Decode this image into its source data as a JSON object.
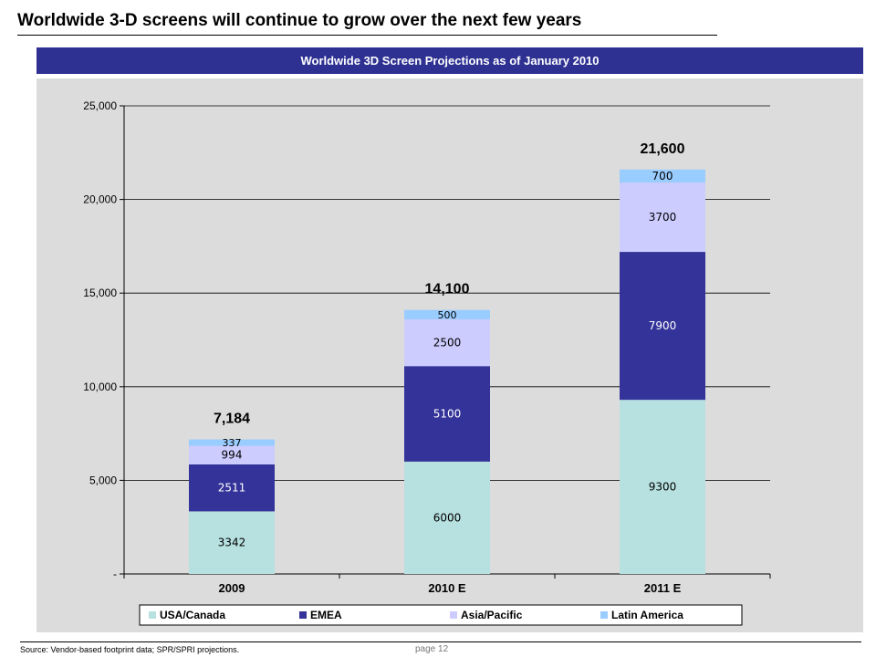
{
  "slide": {
    "title": "Worldwide 3-D screens will continue to grow over the next few years",
    "source": "Source: Vendor-based footprint data; SPR/SPRI projections.",
    "page": "page 12"
  },
  "colors": {
    "header_bg": "#2e3192",
    "panel_bg": "#dcdcdc",
    "series": [
      "#b7e0e0",
      "#333399",
      "#ccccff",
      "#99ccff"
    ],
    "series_text": [
      "#000000",
      "#ffffff",
      "#000000",
      "#000000"
    ]
  },
  "chart_data": {
    "type": "bar",
    "stacked": true,
    "title": "Worldwide 3D Screen Projections as of January 2010",
    "categories": [
      "2009",
      "2010 E",
      "2011 E"
    ],
    "series": [
      {
        "name": "USA/Canada",
        "values": [
          3342,
          6000,
          9300
        ]
      },
      {
        "name": "EMEA",
        "values": [
          2511,
          5100,
          7900
        ]
      },
      {
        "name": "Asia/Pacific",
        "values": [
          994,
          2500,
          3700
        ]
      },
      {
        "name": "Latin America",
        "values": [
          337,
          500,
          700
        ]
      }
    ],
    "totals": [
      "7,184",
      "14,100",
      "21,600"
    ],
    "ylim": [
      0,
      25000
    ],
    "yticks": [
      0,
      5000,
      10000,
      15000,
      20000,
      25000
    ],
    "ytick_labels": [
      "-",
      "5,000",
      "10,000",
      "15,000",
      "20,000",
      "25,000"
    ],
    "grid": true,
    "legend_position": "bottom"
  }
}
